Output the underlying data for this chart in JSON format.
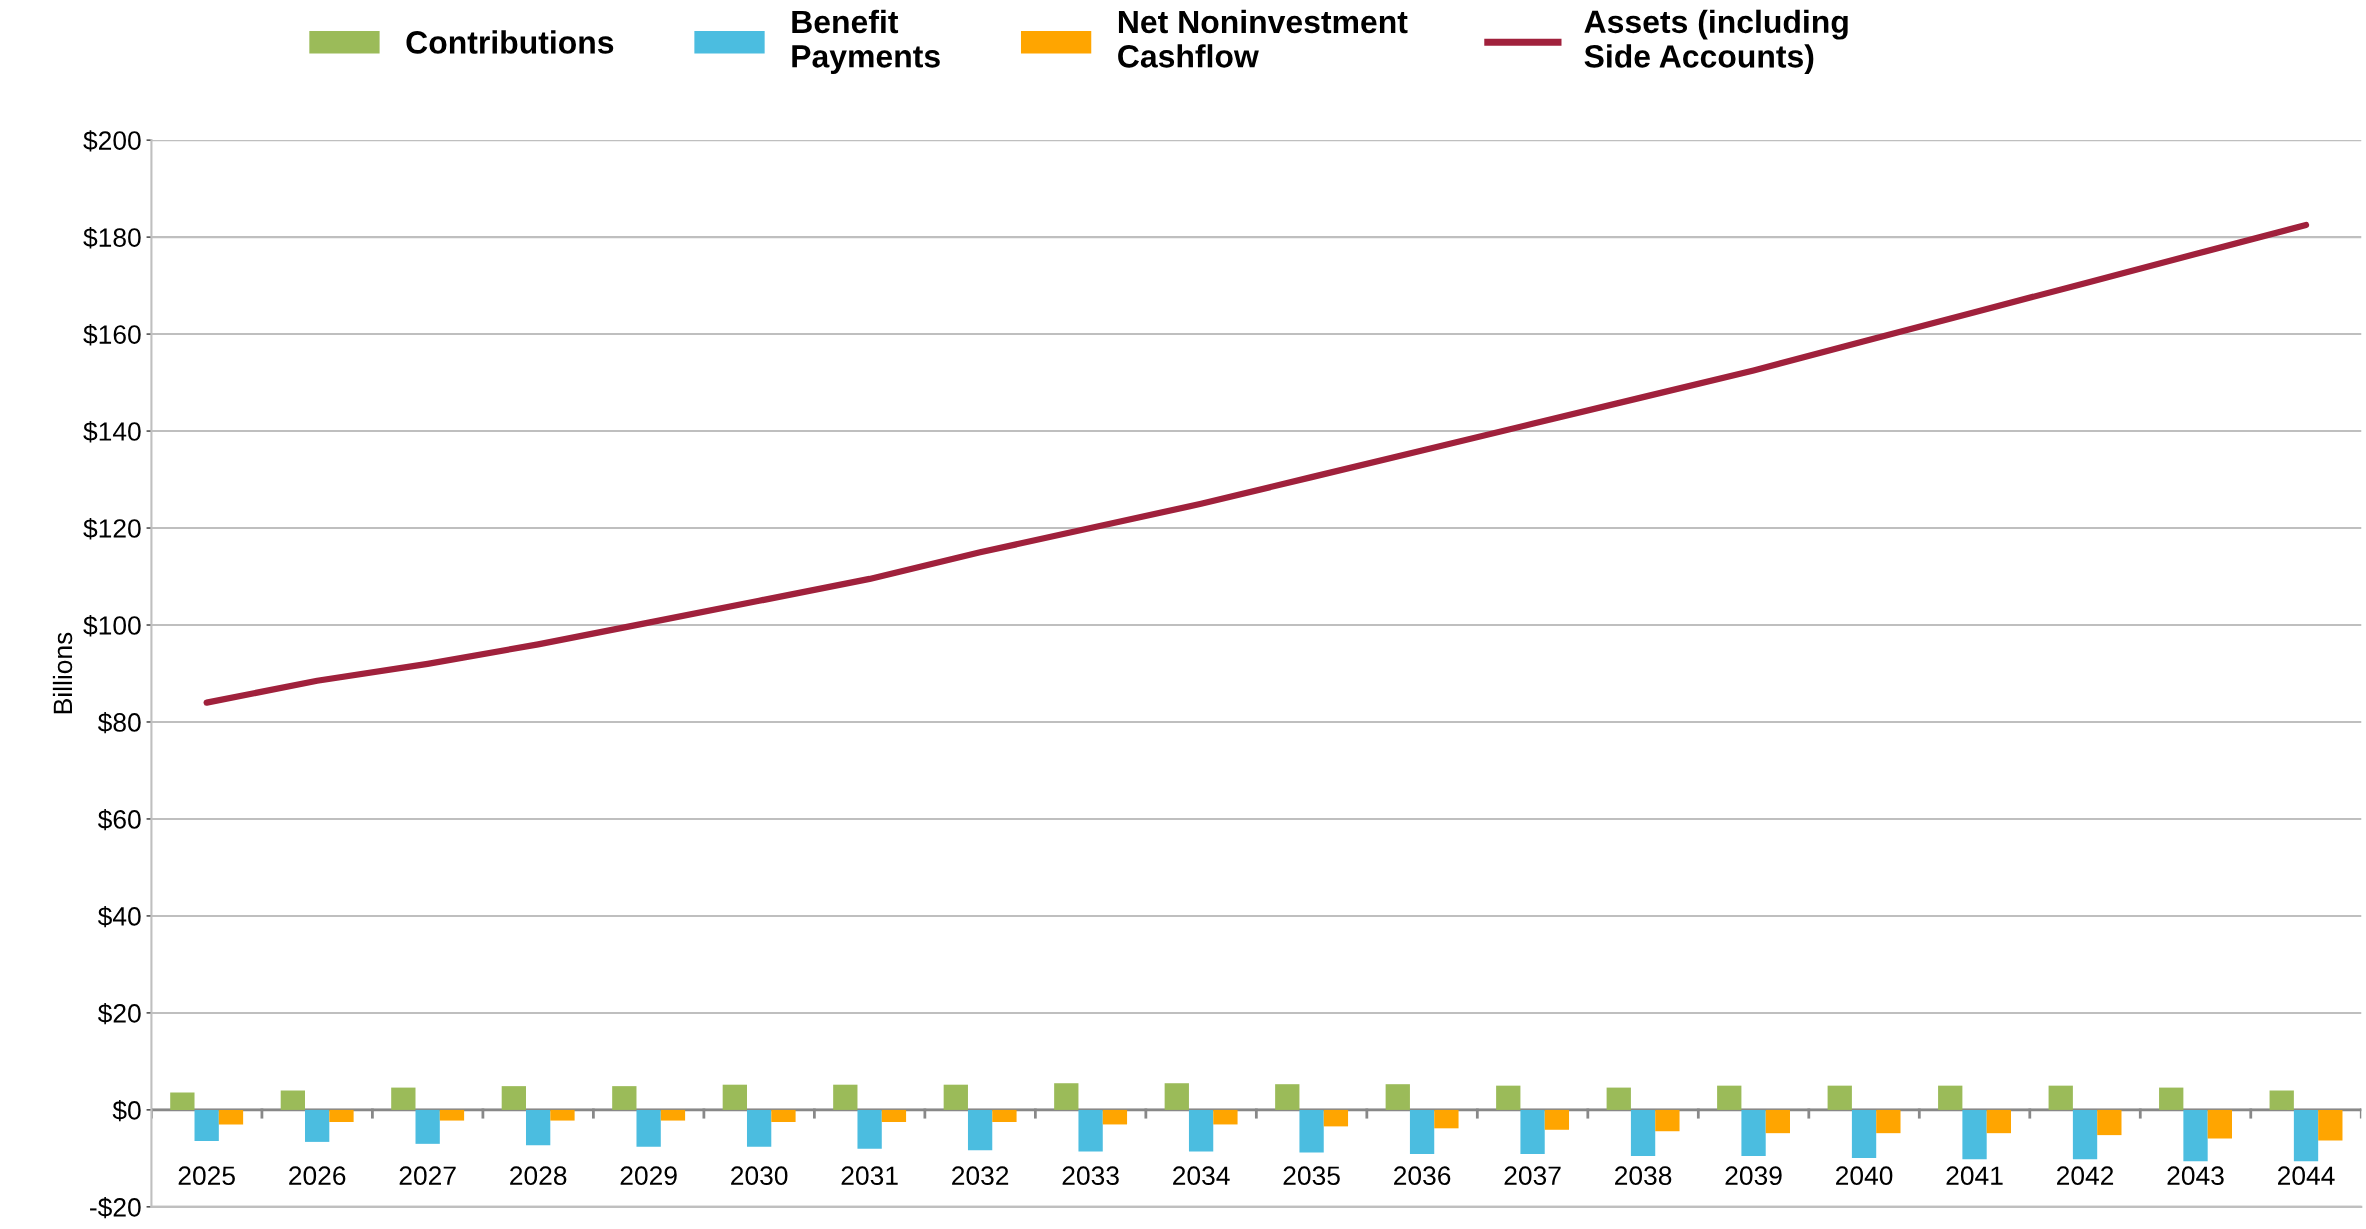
{
  "chart_data": {
    "type": "bar",
    "ylabel": "Billions",
    "categories": [
      "2025",
      "2026",
      "2027",
      "2028",
      "2029",
      "2030",
      "2031",
      "2032",
      "2033",
      "2034",
      "2035",
      "2036",
      "2037",
      "2038",
      "2039",
      "2040",
      "2041",
      "2042",
      "2043",
      "2044"
    ],
    "series": [
      {
        "name": "Contributions",
        "color": "#9bbb59",
        "values": [
          3.6,
          4.0,
          4.6,
          4.9,
          4.9,
          5.2,
          5.2,
          5.2,
          5.5,
          5.5,
          5.3,
          5.3,
          5.0,
          4.6,
          5.0,
          5.0,
          5.0,
          5.0,
          4.6,
          4.0
        ]
      },
      {
        "name": "Benefit\nPayments",
        "color": "#4bbde0",
        "values": [
          -6.4,
          -6.6,
          -7.0,
          -7.3,
          -7.6,
          -7.6,
          -8.0,
          -8.3,
          -8.6,
          -8.6,
          -8.8,
          -9.1,
          -9.1,
          -9.5,
          -9.5,
          -9.9,
          -10.2,
          -10.2,
          -10.6,
          -10.6
        ]
      },
      {
        "name": "Net Noninvestment\nCashflow",
        "color": "#ffa500",
        "values": [
          -3.0,
          -2.5,
          -2.2,
          -2.2,
          -2.2,
          -2.5,
          -2.5,
          -2.5,
          -3.0,
          -3.0,
          -3.4,
          -3.8,
          -4.1,
          -4.4,
          -4.8,
          -4.8,
          -4.8,
          -5.2,
          -5.9,
          -6.3
        ]
      },
      {
        "name": "Assets (including\nSide Accounts)",
        "type": "line",
        "color": "#a0213c",
        "values": [
          84,
          88.5,
          92,
          96,
          100.5,
          105,
          109.5,
          115,
          120,
          125,
          130.5,
          136,
          141.5,
          147,
          152.5,
          158.5,
          164.5,
          170.5,
          176.5,
          182.5
        ]
      }
    ],
    "ylim": [
      -20,
      200
    ],
    "yticks": [
      {
        "value": -20,
        "label": "-$20"
      },
      {
        "value": 0,
        "label": "$0"
      },
      {
        "value": 20,
        "label": "$20"
      },
      {
        "value": 40,
        "label": "$40"
      },
      {
        "value": 60,
        "label": "$60"
      },
      {
        "value": 80,
        "label": "$80"
      },
      {
        "value": 100,
        "label": "$100"
      },
      {
        "value": 120,
        "label": "$120"
      },
      {
        "value": 140,
        "label": "$140"
      },
      {
        "value": 160,
        "label": "$160"
      },
      {
        "value": 180,
        "label": "$180"
      },
      {
        "value": 200,
        "label": "$200"
      }
    ],
    "grid": "y",
    "legend": "top"
  }
}
